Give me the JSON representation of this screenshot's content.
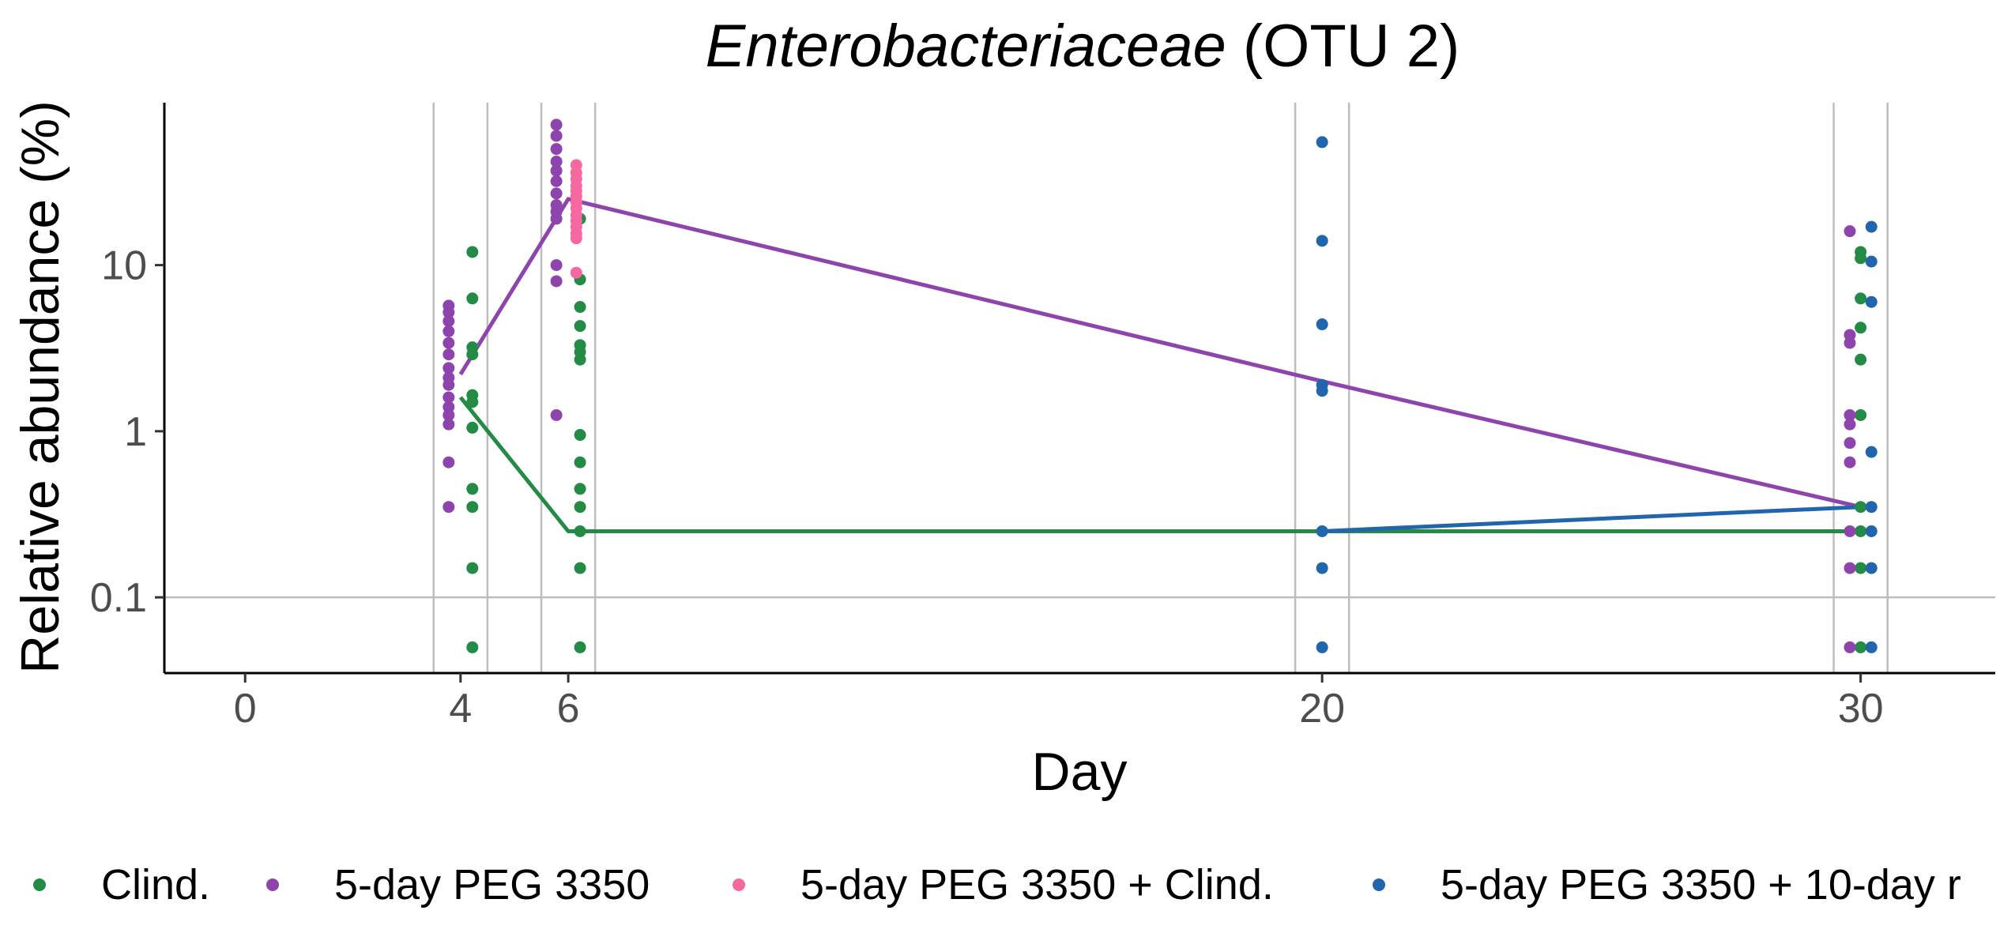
{
  "chart_data": {
    "type": "scatter",
    "title_italic": "Enterobacteriaceae",
    "title_rest": " (OTU 2)",
    "xlabel": "Day",
    "ylabel": "Relative abundance (%)",
    "x_ticks": [
      0,
      4,
      6,
      20,
      30
    ],
    "x_tick_labels": [
      "0",
      "4",
      "6",
      "20",
      "30"
    ],
    "y_ticks": [
      0.1,
      1,
      10
    ],
    "y_tick_labels": [
      "0.1",
      "1",
      "10"
    ],
    "xlim": [
      -1.5,
      32.5
    ],
    "ylim": [
      0.035,
      95
    ],
    "y_scale": "log",
    "legend_position": "bottom",
    "grid": "vertical lines bracketing each sampled day, horizontal line at 0.1",
    "series": [
      {
        "name": "Clind.",
        "color": "#238b45",
        "points": [
          {
            "x": 4,
            "y": 12
          },
          {
            "x": 4,
            "y": 6.3
          },
          {
            "x": 4,
            "y": 3.2
          },
          {
            "x": 4,
            "y": 2.9
          },
          {
            "x": 4,
            "y": 1.65
          },
          {
            "x": 4,
            "y": 1.5
          },
          {
            "x": 4,
            "y": 1.05
          },
          {
            "x": 4,
            "y": 0.45
          },
          {
            "x": 4,
            "y": 0.35
          },
          {
            "x": 4,
            "y": 0.15
          },
          {
            "x": 4,
            "y": 0.05
          },
          {
            "x": 6,
            "y": 19
          },
          {
            "x": 6,
            "y": 8.2
          },
          {
            "x": 6,
            "y": 5.6
          },
          {
            "x": 6,
            "y": 4.3
          },
          {
            "x": 6,
            "y": 3.3
          },
          {
            "x": 6,
            "y": 3.0
          },
          {
            "x": 6,
            "y": 2.7
          },
          {
            "x": 6,
            "y": 0.95
          },
          {
            "x": 6,
            "y": 0.65
          },
          {
            "x": 6,
            "y": 0.45
          },
          {
            "x": 6,
            "y": 0.35
          },
          {
            "x": 6,
            "y": 0.25
          },
          {
            "x": 6,
            "y": 0.15
          },
          {
            "x": 6,
            "y": 0.05
          },
          {
            "x": 30,
            "y": 12
          },
          {
            "x": 30,
            "y": 11
          },
          {
            "x": 30,
            "y": 6.3
          },
          {
            "x": 30,
            "y": 4.2
          },
          {
            "x": 30,
            "y": 2.7
          },
          {
            "x": 30,
            "y": 1.25
          },
          {
            "x": 30,
            "y": 0.35
          },
          {
            "x": 30,
            "y": 0.25
          },
          {
            "x": 30,
            "y": 0.15
          },
          {
            "x": 30,
            "y": 0.05
          }
        ],
        "line": [
          {
            "x": 4,
            "y": 1.6
          },
          {
            "x": 6,
            "y": 0.25
          },
          {
            "x": 20,
            "y": 0.25
          },
          {
            "x": 30,
            "y": 0.25
          }
        ]
      },
      {
        "name": "5-day PEG 3350",
        "color": "#8e44ad",
        "points": [
          {
            "x": 4,
            "y": 5.7
          },
          {
            "x": 4,
            "y": 5.2
          },
          {
            "x": 4,
            "y": 4.6
          },
          {
            "x": 4,
            "y": 4.0
          },
          {
            "x": 4,
            "y": 3.4
          },
          {
            "x": 4,
            "y": 2.9
          },
          {
            "x": 4,
            "y": 2.4
          },
          {
            "x": 4,
            "y": 2.1
          },
          {
            "x": 4,
            "y": 1.9
          },
          {
            "x": 4,
            "y": 1.6
          },
          {
            "x": 4,
            "y": 1.4
          },
          {
            "x": 4,
            "y": 1.25
          },
          {
            "x": 4,
            "y": 1.1
          },
          {
            "x": 4,
            "y": 0.65
          },
          {
            "x": 4,
            "y": 0.35
          },
          {
            "x": 6,
            "y": 70
          },
          {
            "x": 6,
            "y": 60
          },
          {
            "x": 6,
            "y": 50
          },
          {
            "x": 6,
            "y": 42
          },
          {
            "x": 6,
            "y": 37
          },
          {
            "x": 6,
            "y": 32
          },
          {
            "x": 6,
            "y": 27
          },
          {
            "x": 6,
            "y": 23
          },
          {
            "x": 6,
            "y": 21
          },
          {
            "x": 6,
            "y": 19
          },
          {
            "x": 6,
            "y": 10
          },
          {
            "x": 6,
            "y": 8
          },
          {
            "x": 6,
            "y": 1.25
          },
          {
            "x": 30,
            "y": 16
          },
          {
            "x": 30,
            "y": 3.8
          },
          {
            "x": 30,
            "y": 3.4
          },
          {
            "x": 30,
            "y": 1.25
          },
          {
            "x": 30,
            "y": 1.1
          },
          {
            "x": 30,
            "y": 0.85
          },
          {
            "x": 30,
            "y": 0.65
          },
          {
            "x": 30,
            "y": 0.25
          },
          {
            "x": 30,
            "y": 0.15
          },
          {
            "x": 30,
            "y": 0.05
          }
        ],
        "line": [
          {
            "x": 4,
            "y": 2.2
          },
          {
            "x": 6,
            "y": 25
          },
          {
            "x": 20,
            "y": 2.0
          },
          {
            "x": 30,
            "y": 0.35
          }
        ]
      },
      {
        "name": "5-day PEG 3350 + Clind.",
        "color": "#f768a1",
        "points": [
          {
            "x": 6,
            "y": 40
          },
          {
            "x": 6,
            "y": 36
          },
          {
            "x": 6,
            "y": 33
          },
          {
            "x": 6,
            "y": 30
          },
          {
            "x": 6,
            "y": 28
          },
          {
            "x": 6,
            "y": 26
          },
          {
            "x": 6,
            "y": 24
          },
          {
            "x": 6,
            "y": 22
          },
          {
            "x": 6,
            "y": 20
          },
          {
            "x": 6,
            "y": 18.5
          },
          {
            "x": 6,
            "y": 17
          },
          {
            "x": 6,
            "y": 15.5
          },
          {
            "x": 6,
            "y": 14.5
          },
          {
            "x": 6,
            "y": 9
          }
        ],
        "line": []
      },
      {
        "name": "5-day PEG 3350 + 10-day r",
        "color": "#2166ac",
        "points": [
          {
            "x": 20,
            "y": 55
          },
          {
            "x": 20,
            "y": 14
          },
          {
            "x": 20,
            "y": 4.4
          },
          {
            "x": 20,
            "y": 1.9
          },
          {
            "x": 20,
            "y": 1.75
          },
          {
            "x": 20,
            "y": 0.25
          },
          {
            "x": 20,
            "y": 0.15
          },
          {
            "x": 20,
            "y": 0.05
          },
          {
            "x": 30,
            "y": 17
          },
          {
            "x": 30,
            "y": 10.5
          },
          {
            "x": 30,
            "y": 6
          },
          {
            "x": 30,
            "y": 0.75
          },
          {
            "x": 30,
            "y": 0.35
          },
          {
            "x": 30,
            "y": 0.25
          },
          {
            "x": 30,
            "y": 0.15
          },
          {
            "x": 30,
            "y": 0.05
          }
        ],
        "line": [
          {
            "x": 20,
            "y": 0.25
          },
          {
            "x": 30,
            "y": 0.35
          }
        ]
      }
    ]
  }
}
